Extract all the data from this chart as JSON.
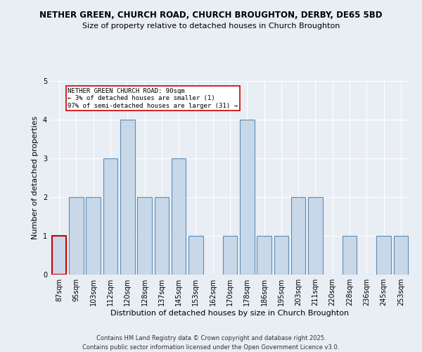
{
  "title1": "NETHER GREEN, CHURCH ROAD, CHURCH BROUGHTON, DERBY, DE65 5BD",
  "title2": "Size of property relative to detached houses in Church Broughton",
  "xlabel": "Distribution of detached houses by size in Church Broughton",
  "ylabel": "Number of detached properties",
  "categories": [
    "87sqm",
    "95sqm",
    "103sqm",
    "112sqm",
    "120sqm",
    "128sqm",
    "137sqm",
    "145sqm",
    "153sqm",
    "162sqm",
    "170sqm",
    "178sqm",
    "186sqm",
    "195sqm",
    "203sqm",
    "211sqm",
    "220sqm",
    "228sqm",
    "236sqm",
    "245sqm",
    "253sqm"
  ],
  "values": [
    1,
    2,
    2,
    3,
    4,
    2,
    2,
    3,
    1,
    0,
    1,
    4,
    1,
    1,
    2,
    2,
    0,
    1,
    0,
    1,
    1
  ],
  "bar_color": "#c8d8e8",
  "bar_edge_color": "#5b8db8",
  "highlight_index": 0,
  "highlight_edge_color": "#cc0000",
  "annotation_box_text": "NETHER GREEN CHURCH ROAD: 90sqm\n← 3% of detached houses are smaller (1)\n97% of semi-detached houses are larger (31) →",
  "annotation_fontsize": 6.5,
  "title1_fontsize": 8.5,
  "title2_fontsize": 8,
  "xlabel_fontsize": 8,
  "ylabel_fontsize": 8,
  "tick_fontsize": 7,
  "footer": "Contains HM Land Registry data © Crown copyright and database right 2025.\nContains public sector information licensed under the Open Government Licence v3.0.",
  "footer_fontsize": 6,
  "ylim": [
    0,
    5
  ],
  "background_color": "#e8eef4",
  "plot_bg_color": "#e8eef4"
}
